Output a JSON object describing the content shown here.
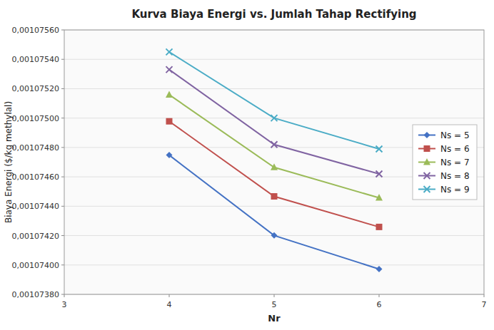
{
  "chart_data": {
    "type": "line",
    "title": "Kurva Biaya Energi vs. Jumlah Tahap Rectifying",
    "x_label": "Nr",
    "y_label": "Biaya Energi ($/kg methylal)",
    "x": [
      4,
      5,
      6
    ],
    "series": [
      {
        "name": "Ns = 5",
        "color": "#4472C4",
        "marker": "diamond",
        "values": [
          0.001074748,
          0.001074201,
          0.001073972
        ]
      },
      {
        "name": "Ns = 6",
        "color": "#C0504D",
        "marker": "square",
        "values": [
          0.001074978,
          0.001074467,
          0.001074259
        ]
      },
      {
        "name": "Ns = 7",
        "color": "#9BBB59",
        "marker": "triangle",
        "values": [
          0.001075159,
          0.001074665,
          0.001074457
        ]
      },
      {
        "name": "Ns = 8",
        "color": "#8064A2",
        "marker": "x",
        "values": [
          0.00107533,
          0.00107482,
          0.00107462
        ]
      },
      {
        "name": "Ns = 9",
        "color": "#4BACC6",
        "marker": "x",
        "values": [
          0.00107545,
          0.001075,
          0.00107479
        ]
      }
    ],
    "xlim": [
      3,
      7
    ],
    "xticks": [
      3,
      4,
      5,
      6,
      7
    ],
    "ylim": [
      0.0010738,
      0.0010756
    ],
    "yticks": [
      {
        "value": 0.0010738,
        "label": "0,00107380"
      },
      {
        "value": 0.001074,
        "label": "0,00107400"
      },
      {
        "value": 0.0010742,
        "label": "0,00107420"
      },
      {
        "value": 0.0010744,
        "label": "0,00107440"
      },
      {
        "value": 0.0010746,
        "label": "0,00107460"
      },
      {
        "value": 0.0010748,
        "label": "0,00107480"
      },
      {
        "value": 0.001075,
        "label": "0,00107500"
      },
      {
        "value": 0.0010752,
        "label": "0,00107520"
      },
      {
        "value": 0.0010754,
        "label": "0,00107540"
      },
      {
        "value": 0.0010756,
        "label": "0,00107560"
      }
    ],
    "grid": true,
    "legend": "center right"
  }
}
